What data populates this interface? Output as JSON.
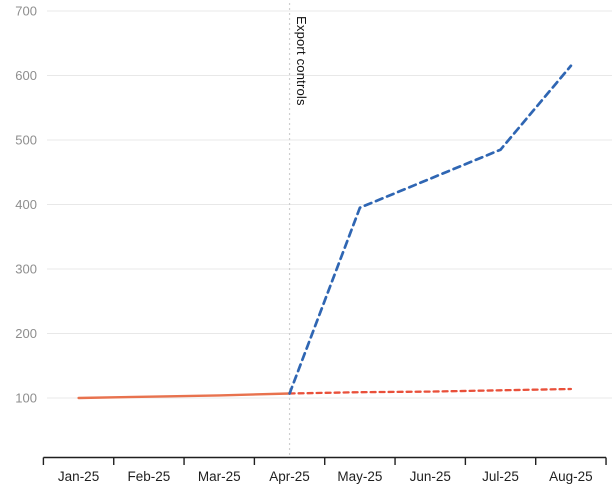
{
  "chart_data": {
    "type": "line",
    "title": "",
    "xlabel": "",
    "ylabel": "",
    "categories": [
      "Jan-25",
      "Feb-25",
      "Mar-25",
      "Apr-25",
      "May-25",
      "Jun-25",
      "Jul-25",
      "Aug-25"
    ],
    "series": [
      {
        "name": "orange-solid",
        "color": "#e8724e",
        "style": "solid",
        "values": [
          100,
          102,
          104,
          107,
          null,
          null,
          null,
          null
        ]
      },
      {
        "name": "orange-dashed",
        "color": "#e9503a",
        "style": "dashed",
        "values": [
          null,
          null,
          null,
          107,
          109,
          110,
          112,
          114
        ]
      },
      {
        "name": "blue-dashed",
        "color": "#2f66b3",
        "style": "dashed",
        "values": [
          null,
          null,
          null,
          107,
          395,
          440,
          485,
          615
        ]
      }
    ],
    "ylim": [
      0,
      700
    ],
    "yticks": [
      100,
      200,
      300,
      400,
      500,
      600,
      700
    ],
    "grid": true,
    "legend": false,
    "annotation": {
      "label": "Export controls",
      "x_category": "Apr-25"
    }
  },
  "colors": {
    "gridline": "#e8e8e8",
    "axis": "#1f1f1f",
    "y_tick_label": "#8e8e8e",
    "x_tick_label": "#1f1f1f",
    "annotation_line": "#cfcfcf",
    "annotation_text": "#111111",
    "background": "#ffffff"
  }
}
